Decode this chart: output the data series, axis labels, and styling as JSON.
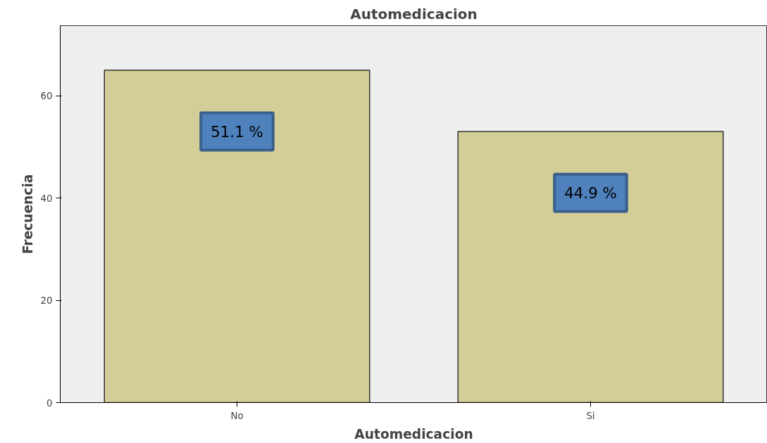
{
  "chart_data": {
    "type": "bar",
    "title": "Automedicacion",
    "xlabel": "Automedicacion",
    "ylabel": "Frecuencia",
    "categories": [
      "No",
      "Si"
    ],
    "values": [
      65,
      53
    ],
    "annotations": [
      "51.1 %",
      "44.9 %"
    ],
    "color": "#d3ce97",
    "ylim": [
      0,
      73.7
    ],
    "yticks": [
      0,
      20,
      40,
      60
    ],
    "grid": false
  }
}
